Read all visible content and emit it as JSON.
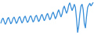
{
  "chart_data": {
    "type": "line",
    "color": "#3a8fd9",
    "grid": false,
    "tick_labels": false,
    "values": [
      50,
      58,
      62,
      55,
      48,
      52,
      60,
      63,
      56,
      49,
      53,
      61,
      64,
      57,
      50,
      54,
      62,
      65,
      58,
      51,
      55,
      63,
      66,
      58,
      52,
      56,
      64,
      67,
      60,
      53,
      57,
      65,
      68,
      61,
      54,
      58,
      66,
      70,
      63,
      56,
      60,
      68,
      72,
      65,
      58,
      62,
      70,
      75,
      68,
      60,
      65,
      74,
      80,
      72,
      64,
      70,
      82,
      88,
      80,
      72,
      78,
      90,
      95,
      86,
      78,
      84,
      92,
      85,
      60,
      30,
      45,
      70,
      88,
      92,
      80,
      50,
      40,
      65,
      85,
      90,
      94,
      88,
      92,
      96
    ]
  }
}
